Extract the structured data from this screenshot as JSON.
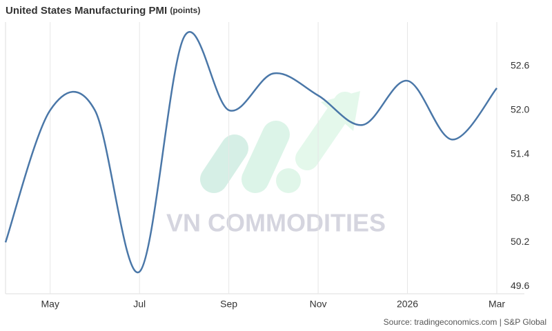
{
  "chart_data": {
    "type": "line",
    "title": "United States Manufacturing PMI",
    "subtitle": "(points)",
    "source": "Source: tradingeconomics.com | S&P Global",
    "watermark": "VN COMMODITIES",
    "categories": [
      null,
      "May",
      null,
      "Jul",
      null,
      "Sep",
      null,
      "Nov",
      null,
      "2026",
      null,
      "Mar"
    ],
    "series": [
      {
        "name": "Manufacturing PMI",
        "color": "#4a77a8",
        "values": [
          50.2,
          52.0,
          52.0,
          49.8,
          53.0,
          52.0,
          52.5,
          52.2,
          51.8,
          52.4,
          51.6,
          52.3
        ]
      }
    ],
    "ylim": [
      49.5,
      53.2
    ],
    "yticks": [
      49.6,
      50.2,
      50.8,
      51.4,
      {
        "value": 52,
        "label": "52.0"
      },
      52.6
    ],
    "grid": true
  }
}
